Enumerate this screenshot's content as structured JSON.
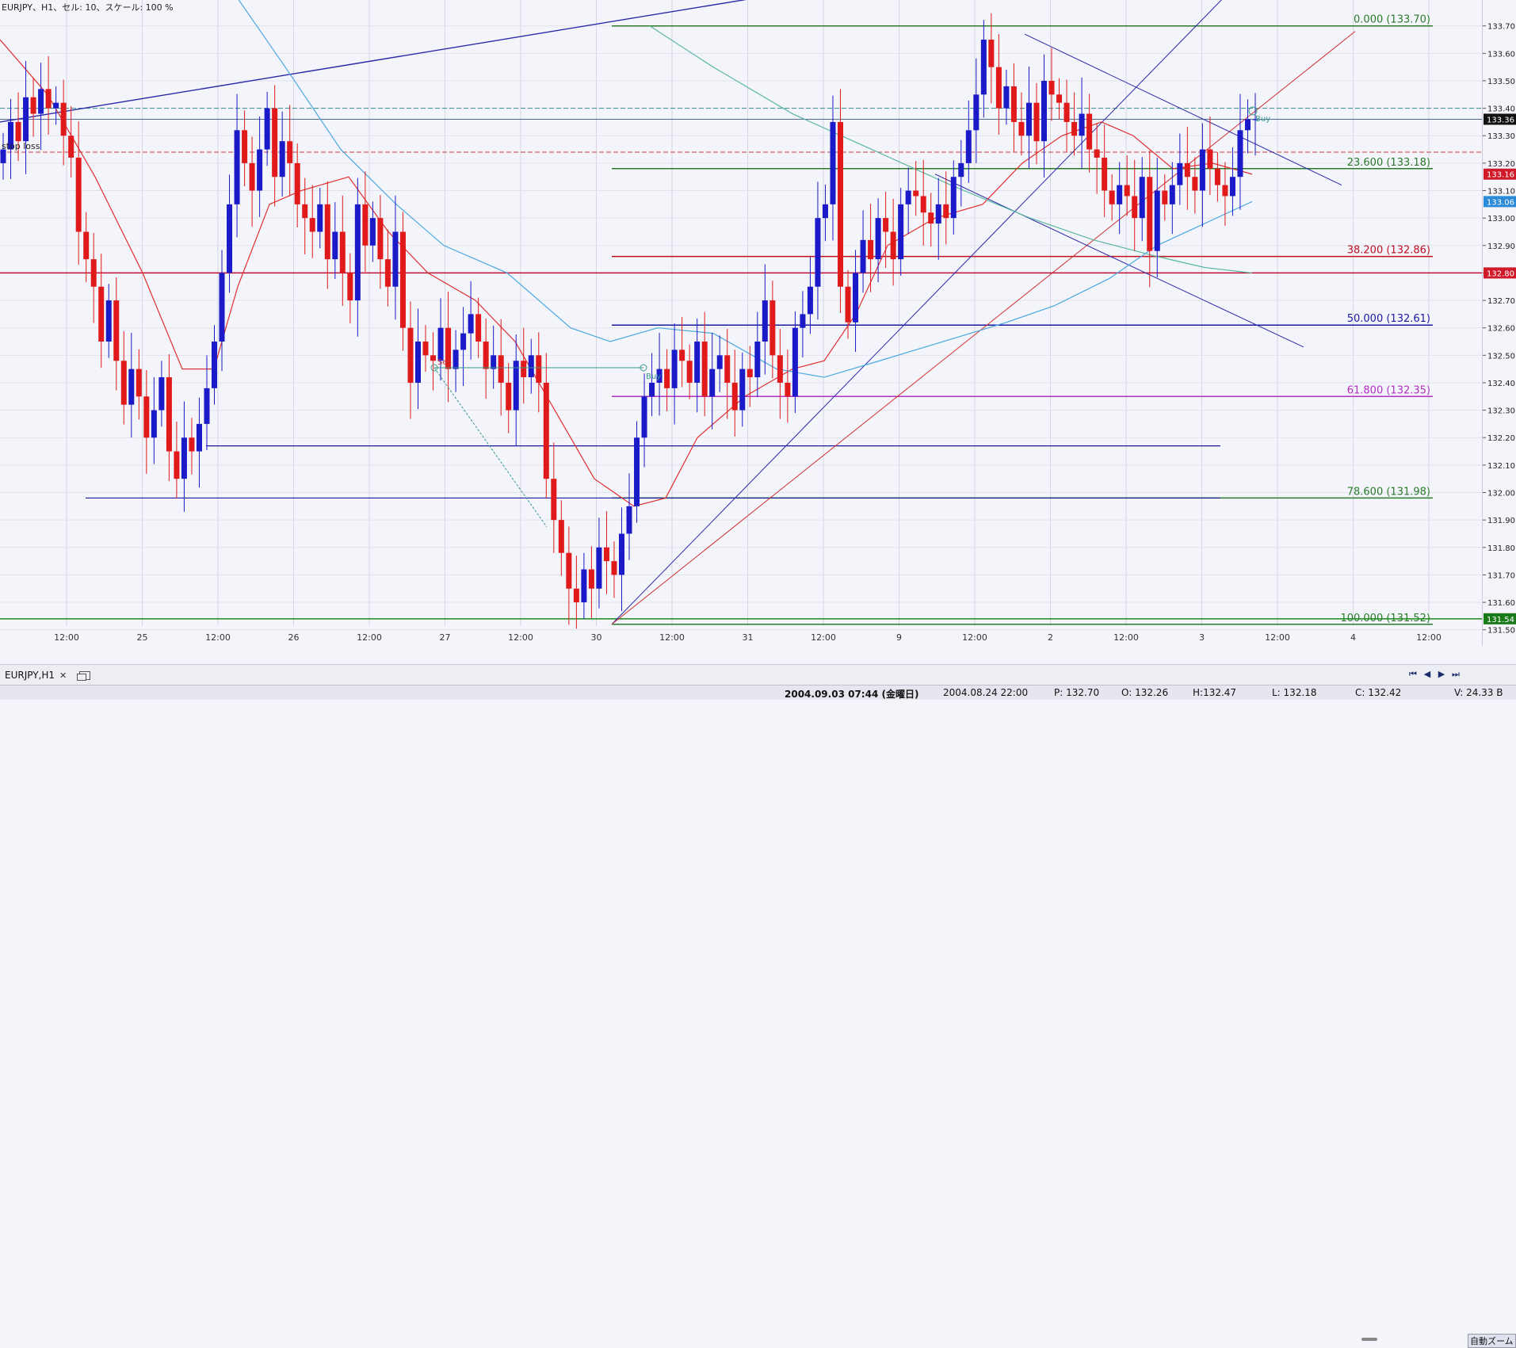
{
  "window": {
    "title": "EURJPY、H1、セル: 10、スケール: 100 %"
  },
  "price_axis": {
    "ticks": [
      "133.70",
      "133.60",
      "133.50",
      "133.40",
      "133.30",
      "133.20",
      "133.10",
      "133.00",
      "132.90",
      "132.80",
      "132.70",
      "132.60",
      "132.50",
      "132.40",
      "132.30",
      "132.20",
      "132.10",
      "132.00",
      "131.90",
      "131.80",
      "131.70",
      "131.60",
      "131.50"
    ],
    "tick_values": [
      133.7,
      133.6,
      133.5,
      133.4,
      133.3,
      133.2,
      133.1,
      133.0,
      132.9,
      132.8,
      132.7,
      132.6,
      132.5,
      132.4,
      132.3,
      132.2,
      132.1,
      132.0,
      131.9,
      131.8,
      131.7,
      131.6,
      131.5
    ],
    "markers": [
      {
        "label": "133.36",
        "value": 133.36,
        "bg": "#111111"
      },
      {
        "label": "133.16",
        "value": 133.16,
        "bg": "#d01a2a"
      },
      {
        "label": "133.06",
        "value": 133.06,
        "bg": "#2a8ad8"
      },
      {
        "label": "132.80",
        "value": 132.8,
        "bg": "#d01a2a"
      },
      {
        "label": "131.54",
        "value": 131.54,
        "bg": "#1a7a1a"
      }
    ]
  },
  "time_axis": {
    "labels": [
      "12:00",
      "25",
      "12:00",
      "26",
      "12:00",
      "27",
      "12:00",
      "30",
      "12:00",
      "31",
      "12:00",
      "9",
      "12:00",
      "2",
      "12:00",
      "3",
      "12:00",
      "4",
      "12:00"
    ]
  },
  "fibonacci": [
    {
      "label": "0.000 (133.70)",
      "value": 133.7,
      "color": "#2a7a2a"
    },
    {
      "label": "23.600 (133.18)",
      "value": 133.18,
      "color": "#2a7a2a"
    },
    {
      "label": "38.200 (132.86)",
      "value": 132.86,
      "color": "#c01020"
    },
    {
      "label": "50.000 (132.61)",
      "value": 132.61,
      "color": "#1a1aa0"
    },
    {
      "label": "61.800 (132.35)",
      "value": 132.35,
      "color": "#b030c0"
    },
    {
      "label": "78.600 (131.98)",
      "value": 131.98,
      "color": "#2a7a2a"
    },
    {
      "label": "100.000 (131.52)",
      "value": 131.52,
      "color": "#2a7a2a"
    }
  ],
  "chart_labels": {
    "stop_loss": "stop loss",
    "sell": "Sell",
    "buy": "Buy",
    "buy_small": "Buy"
  },
  "colors": {
    "bull": "#1a1ac8",
    "bear": "#e01a1a",
    "ema_fast": "#e03030",
    "ema_mid": "#4aa8e0",
    "ema_slow": "#5ab8a0",
    "trend_blue": "#2a2aa8"
  },
  "chart_data": {
    "type": "candlestick",
    "symbol": "EURJPY",
    "timeframe": "H1",
    "ylim": [
      131.45,
      133.78
    ],
    "closes": [
      133.25,
      133.35,
      133.28,
      133.44,
      133.38,
      133.47,
      133.4,
      133.42,
      133.3,
      133.22,
      132.95,
      132.85,
      132.75,
      132.55,
      132.7,
      132.48,
      132.32,
      132.45,
      132.35,
      132.2,
      132.3,
      132.42,
      132.15,
      132.05,
      132.2,
      132.15,
      132.25,
      132.38,
      132.55,
      132.8,
      133.05,
      133.32,
      133.2,
      133.1,
      133.25,
      133.4,
      133.15,
      133.28,
      133.2,
      133.05,
      133.0,
      132.95,
      133.05,
      132.85,
      132.95,
      132.8,
      132.7,
      133.05,
      132.9,
      133.0,
      132.85,
      132.75,
      132.95,
      132.6,
      132.4,
      132.55,
      132.5,
      132.48,
      132.6,
      132.45,
      132.52,
      132.58,
      132.65,
      132.55,
      132.45,
      132.5,
      132.4,
      132.3,
      132.48,
      132.42,
      132.5,
      132.4,
      132.05,
      131.9,
      131.78,
      131.65,
      131.6,
      131.72,
      131.65,
      131.8,
      131.75,
      131.7,
      131.85,
      131.95,
      132.2,
      132.35,
      132.4,
      132.45,
      132.38,
      132.52,
      132.48,
      132.4,
      132.55,
      132.35,
      132.45,
      132.5,
      132.4,
      132.3,
      132.45,
      132.42,
      132.55,
      132.7,
      132.5,
      132.4,
      132.35,
      132.6,
      132.65,
      132.75,
      133.0,
      133.05,
      133.35,
      132.75,
      132.62,
      132.8,
      132.92,
      132.85,
      133.0,
      132.95,
      132.85,
      133.05,
      133.1,
      133.08,
      133.02,
      132.98,
      133.05,
      133.0,
      133.15,
      133.2,
      133.32,
      133.45,
      133.65,
      133.55,
      133.4,
      133.48,
      133.35,
      133.3,
      133.42,
      133.28,
      133.5,
      133.45,
      133.42,
      133.35,
      133.3,
      133.38,
      133.25,
      133.22,
      133.1,
      133.05,
      133.12,
      133.08,
      133.0,
      133.15,
      132.88,
      133.1,
      133.05,
      133.12,
      133.2,
      133.15,
      133.1,
      133.25,
      133.18,
      133.12,
      133.08,
      133.15,
      133.32,
      133.36,
      133.36
    ]
  }
}
